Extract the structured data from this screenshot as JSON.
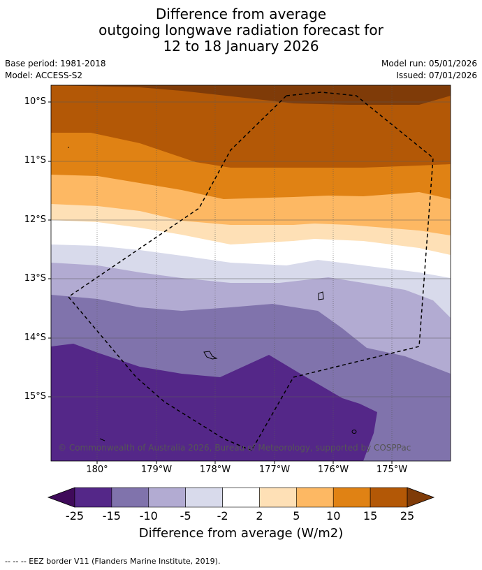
{
  "title": {
    "line1": "Difference from average",
    "line2": "outgoing longwave radiation forecast for",
    "line3": "12 to 18 January 2026"
  },
  "meta": {
    "base_period": "Base period: 1981-2018",
    "model": "Model: ACCESS-S2",
    "model_run": "Model run: 05/01/2026",
    "issued": "Issued: 07/01/2026"
  },
  "map": {
    "lat_labels": [
      "10°S",
      "11°S",
      "12°S",
      "13°S",
      "14°S",
      "15°S"
    ],
    "lon_labels": [
      "180°",
      "179°W",
      "178°W",
      "177°W",
      "176°W",
      "175°W"
    ],
    "copyright": "© Commonwealth of Australia 2026, Bureau of Meteorology, supported by COSPPac"
  },
  "colorbar": {
    "ticks": [
      "-25",
      "-15",
      "-10",
      "-5",
      "-2",
      "2",
      "5",
      "10",
      "15",
      "25"
    ],
    "colors": [
      "#3f0a5a",
      "#542788",
      "#8073ac",
      "#b2abd2",
      "#d8daeb",
      "#ffffff",
      "#fee0b6",
      "#fdb863",
      "#e08214",
      "#b35806",
      "#7f3b08"
    ],
    "label": "Difference from average (W/m2)"
  },
  "footer": "--  --  -- EEZ border V11 (Flanders Marine Institute, 2019)."
}
